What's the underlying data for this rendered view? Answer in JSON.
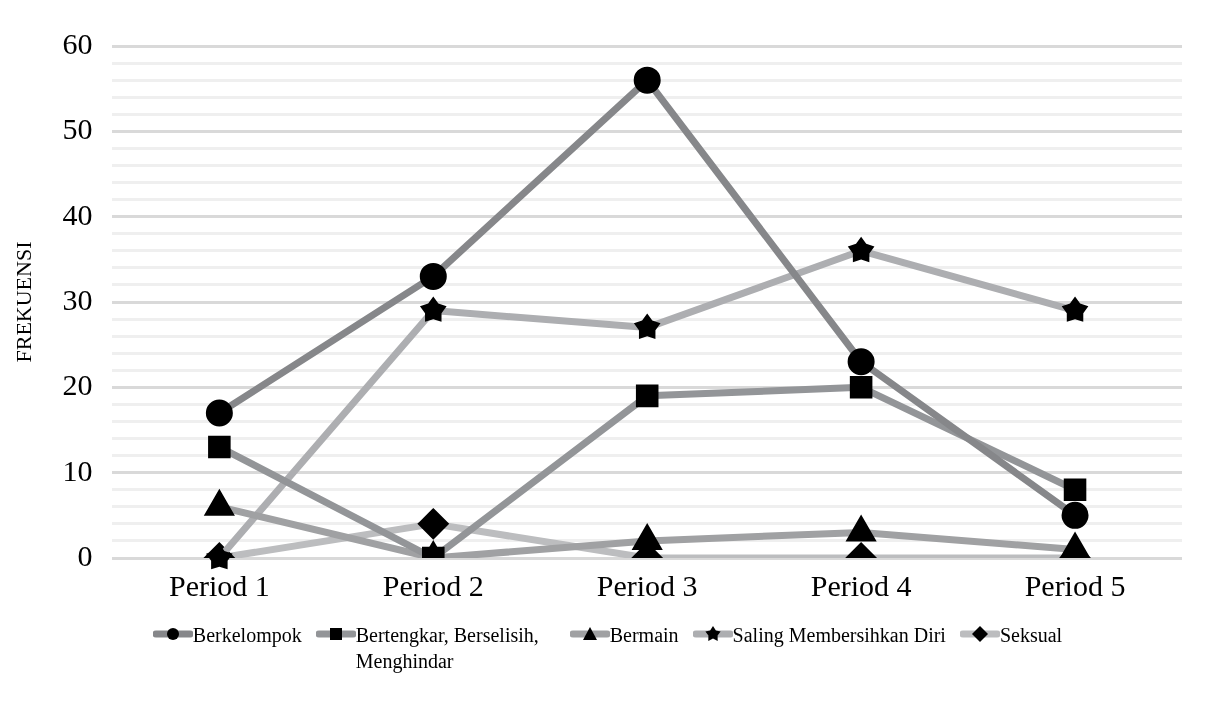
{
  "chart_data": {
    "type": "line",
    "ylabel": "FREKUENSI",
    "categories": [
      "Period 1",
      "Period 2",
      "Period 3",
      "Period 4",
      "Period 5"
    ],
    "series": [
      {
        "name": "Berkelompok",
        "color": "#86878a",
        "marker": "circle",
        "values": [
          17,
          33,
          56,
          23,
          5
        ]
      },
      {
        "name": "Bertengkar, Berselisih, Menghindar",
        "color": "#939598",
        "marker": "square",
        "values": [
          13,
          0,
          19,
          20,
          8
        ]
      },
      {
        "name": "Bermain",
        "color": "#a0a1a3",
        "marker": "triangle",
        "values": [
          6,
          0,
          2,
          3,
          1
        ]
      },
      {
        "name": "Saling Membersihkan Diri",
        "color": "#adaeb1",
        "marker": "star",
        "values": [
          0,
          29,
          27,
          36,
          29
        ]
      },
      {
        "name": "Seksual",
        "color": "#bcbdbf",
        "marker": "diamond",
        "values": [
          0,
          4,
          0,
          0,
          0
        ]
      }
    ],
    "ylim": [
      0,
      60
    ],
    "yticks": [
      0,
      10,
      20,
      30,
      40,
      50,
      60
    ],
    "grid": "y",
    "legend": "bottom"
  }
}
